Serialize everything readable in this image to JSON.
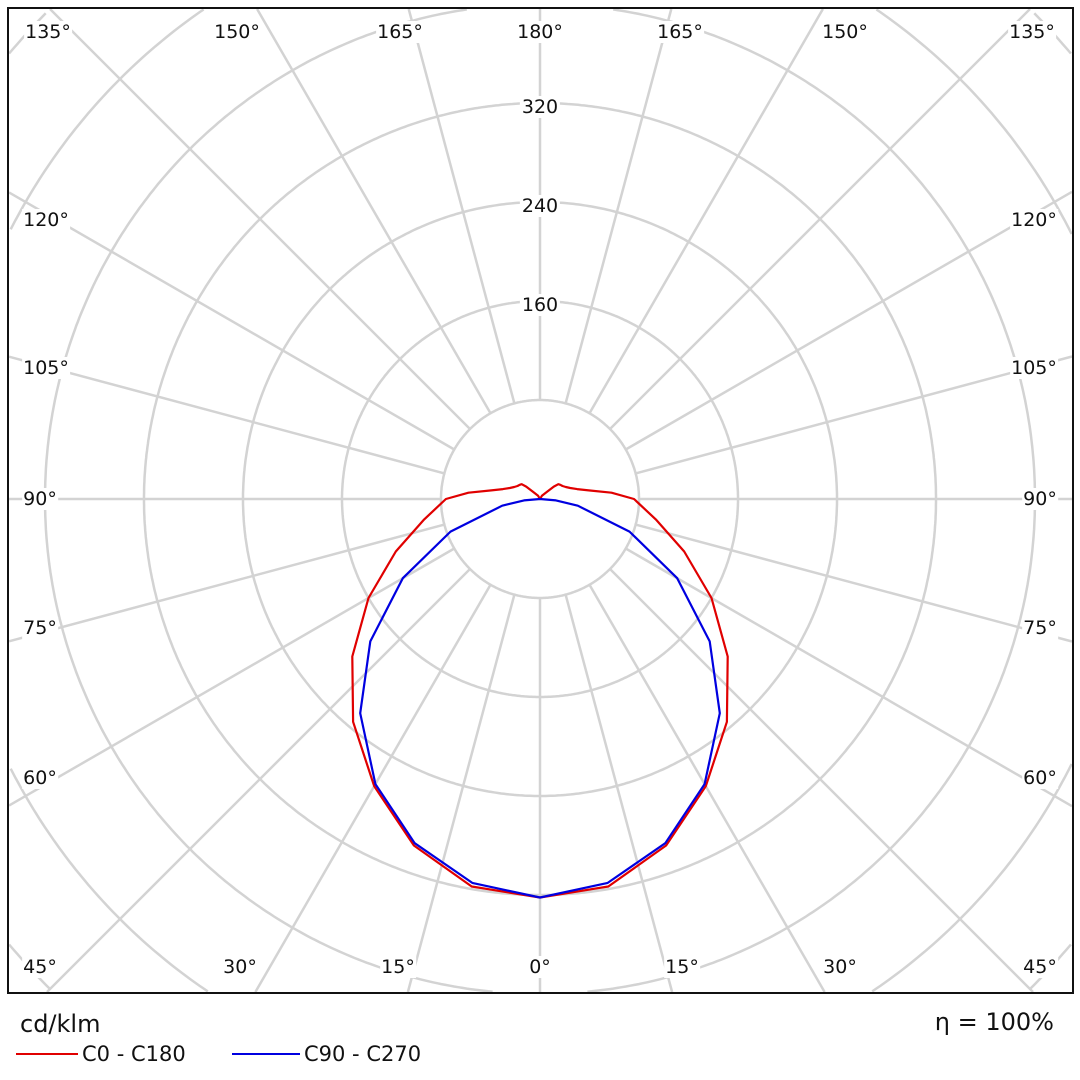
{
  "chart_data": {
    "type": "polar",
    "unit_label": "cd/klm",
    "efficiency": "η = 100%",
    "radial_ticks": [
      80,
      160,
      240,
      320,
      400,
      480,
      560,
      640,
      720,
      800,
      880
    ],
    "radial_tick_labels": [
      "160",
      "240",
      "320"
    ],
    "angle_labels": {
      "top": [
        "135°",
        "150°",
        "165°",
        "180°",
        "165°",
        "150°",
        "135°"
      ],
      "left": [
        "120°",
        "105°",
        "90°",
        "75°",
        "60°"
      ],
      "right": [
        "120°",
        "105°",
        "90°",
        "75°",
        "60°"
      ],
      "bottom": [
        "45°",
        "30°",
        "15°",
        "0°",
        "15°",
        "30°",
        "45°"
      ]
    },
    "angle_step_deg": 15,
    "grid": true,
    "legend_position": "bottom-left",
    "series": [
      {
        "name": "C0 - C180",
        "color": "#e00000",
        "gamma": [
          0,
          10,
          20,
          30,
          40,
          50,
          60,
          70,
          80,
          90,
          95,
          100,
          105,
          110,
          115,
          120,
          125,
          129,
          132,
          136,
          150,
          180
        ],
        "values": [
          322,
          318,
          298,
          268,
          235,
          198,
          160,
          124,
          95,
          76,
          58,
          40,
          31,
          26,
          23,
          21,
          20,
          19,
          15,
          8,
          3,
          0
        ]
      },
      {
        "name": "C90 - C270",
        "color": "#0000e0",
        "gamma": [
          0,
          10,
          20,
          30,
          40,
          50,
          60,
          70,
          80,
          85,
          90
        ],
        "values": [
          322,
          315,
          296,
          266,
          226,
          179,
          128,
          77,
          31,
          13,
          0
        ]
      }
    ]
  }
}
